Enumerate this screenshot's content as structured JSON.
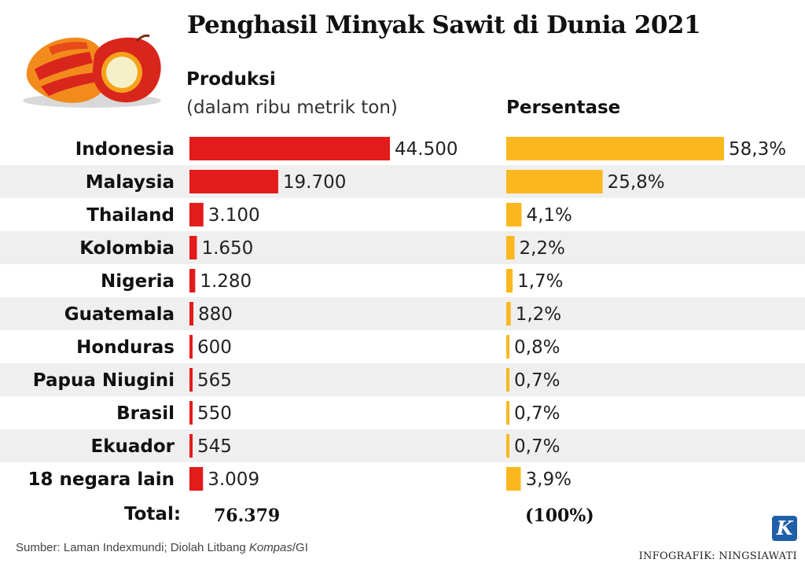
{
  "title": "Penghasil Minyak Sawit di Dunia 2021",
  "production_header": "Produksi",
  "production_unit": "(dalam ribu metrik ton)",
  "percentage_header": "Persentase",
  "total": {
    "label": "Total:",
    "value": "76.379",
    "percent": "(100%)"
  },
  "source": {
    "prefix": "Sumber: Laman Indexmundi; Diolah Litbang ",
    "publication": "Kompas",
    "suffix": "/GI"
  },
  "credit": "INFOGRAFIK: NINGSIAWATI",
  "logo_letter": "K",
  "icons": {
    "illustration": "palm-fruit-icon"
  },
  "colors": {
    "production_bar": "#e31b1b",
    "percentage_bar": "#fbb81e",
    "stripe": "#efefef"
  },
  "chart_data": {
    "type": "bar",
    "orientation": "horizontal",
    "categories": [
      "Indonesia",
      "Malaysia",
      "Thailand",
      "Kolombia",
      "Nigeria",
      "Guatemala",
      "Honduras",
      "Papua Niugini",
      "Brasil",
      "Ekuador",
      "18 negara lain"
    ],
    "series": [
      {
        "values": [
          44500,
          19700,
          3100,
          1650,
          1280,
          880,
          600,
          565,
          550,
          545,
          3009
        ],
        "labels": [
          "44.500",
          "19.700",
          "3.100",
          "1.650",
          "1.280",
          "880",
          "600",
          "565",
          "550",
          "545",
          "3.009"
        ]
      },
      {
        "values": [
          58.3,
          25.8,
          4.1,
          2.2,
          1.7,
          1.2,
          0.8,
          0.7,
          0.7,
          0.7,
          3.9
        ],
        "labels": [
          "58,3%",
          "25,8%",
          "4,1%",
          "2,2%",
          "1,7%",
          "1,2%",
          "0,8%",
          "0,7%",
          "0,7%",
          "0,7%",
          "3,9%"
        ]
      }
    ],
    "grid": false,
    "legend": "none"
  }
}
